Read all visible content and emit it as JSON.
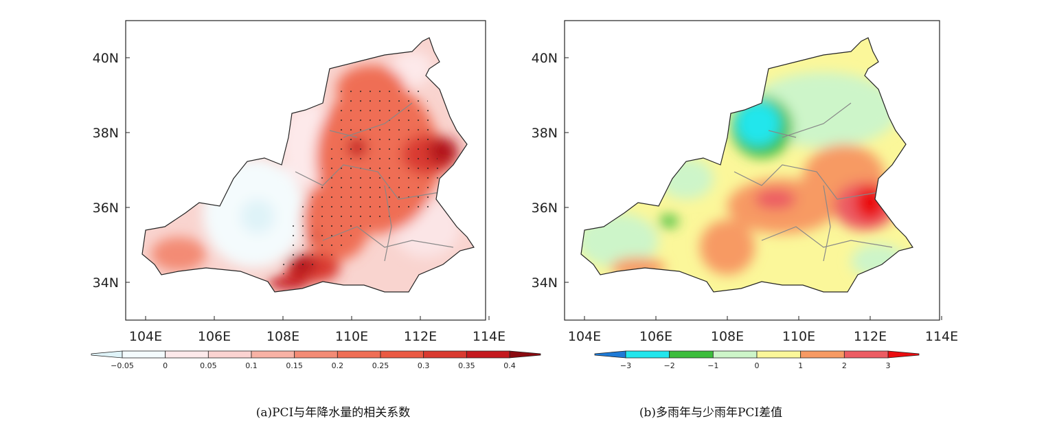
{
  "panels": [
    {
      "caption": "(a)PCI与年降水量的相关系数",
      "lon_ticks": [
        "104E",
        "106E",
        "108E",
        "110E",
        "112E",
        "114E"
      ],
      "lat_ticks": [
        "40N",
        "38N",
        "36N",
        "34N"
      ],
      "colorbar": {
        "labels": [
          "−0.05",
          "0",
          "0.05",
          "0.1",
          "0.15",
          "0.2",
          "0.25",
          "0.3",
          "0.35",
          "0.4"
        ],
        "colors": [
          "#dff3f8",
          "#f4fbfd",
          "#fde9ea",
          "#fbd3d1",
          "#f8b2a5",
          "#f38b75",
          "#ef6e55",
          "#ea5a43",
          "#d93a30",
          "#c4191f",
          "#8a0a10"
        ]
      }
    },
    {
      "caption": "(b)多雨年与少雨年PCI差值",
      "lon_ticks": [
        "104E",
        "106E",
        "108E",
        "110E",
        "112E",
        "114E"
      ],
      "lat_ticks": [
        "40N",
        "38N",
        "36N",
        "34N"
      ],
      "colorbar": {
        "labels": [
          "−3",
          "−2",
          "−1",
          "0",
          "1",
          "2",
          "3"
        ],
        "colors": [
          "#1e7ad6",
          "#22e6ec",
          "#3cbd3c",
          "#cdf5c9",
          "#fbf79a",
          "#f79a63",
          "#ec5c63",
          "#ea0d10"
        ]
      }
    }
  ],
  "chart_data": [
    {
      "type": "heatmap",
      "title": "(a)PCI与年降水量的相关系数",
      "xlabel": "",
      "ylabel": "",
      "xlim": [
        103.7,
        114
      ],
      "ylim": [
        33,
        41
      ],
      "x_ticks": [
        "104E",
        "106E",
        "108E",
        "110E",
        "112E",
        "114E"
      ],
      "y_ticks": [
        "34N",
        "36N",
        "38N",
        "40N"
      ],
      "levels": [
        -0.05,
        0,
        0.05,
        0.1,
        0.15,
        0.2,
        0.25,
        0.3,
        0.35,
        0.4
      ]
    },
    {
      "type": "heatmap",
      "title": "(b)多雨年与少雨年PCI差值",
      "xlabel": "",
      "ylabel": "",
      "xlim": [
        103.7,
        114
      ],
      "ylim": [
        33,
        41
      ],
      "x_ticks": [
        "104E",
        "106E",
        "108E",
        "110E",
        "112E",
        "114E"
      ],
      "y_ticks": [
        "34N",
        "36N",
        "38N",
        "40N"
      ],
      "levels": [
        -3,
        -2,
        -1,
        0,
        1,
        2,
        3
      ]
    }
  ]
}
